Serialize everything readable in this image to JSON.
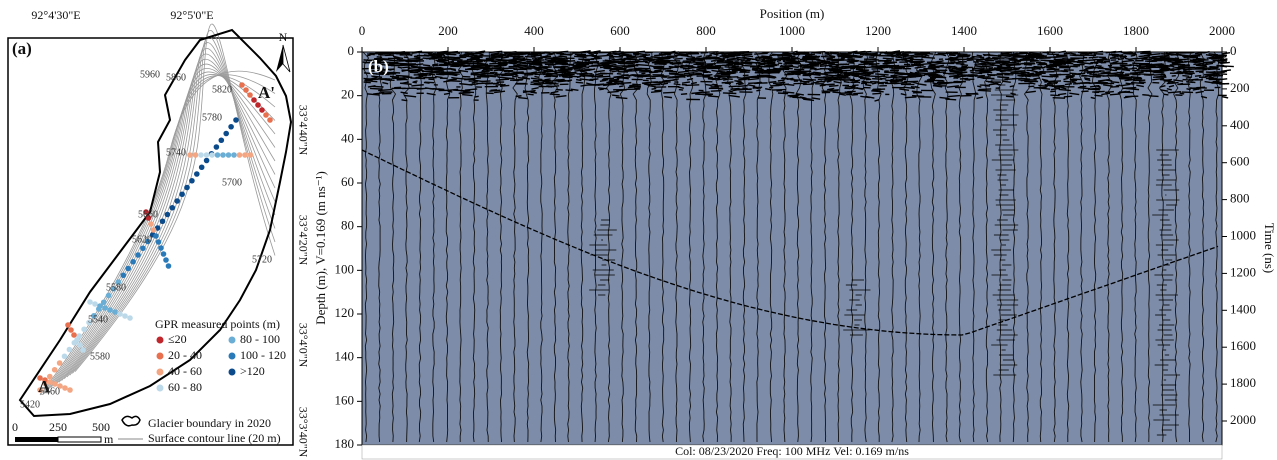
{
  "panel_a": {
    "label": "(a)",
    "lon_labels": [
      "92°4'30\"E",
      "92°5'0\"E"
    ],
    "lat_labels": [
      "33°4'40\"N",
      "33°4'20\"N",
      "33°4'0\"N",
      "33°3'40\"N"
    ],
    "north": "N",
    "point_labels": [
      "A",
      "A'"
    ],
    "contour_labels": [
      "5960",
      "5860",
      "5820",
      "5780",
      "5740",
      "5700",
      "5660",
      "5620",
      "5720",
      "5580",
      "5540",
      "5580",
      "5460",
      "5420"
    ],
    "legend_title": "GPR measured points (m)",
    "legend_items": [
      "≤20",
      "20 - 40",
      "40 - 60",
      "60 - 80",
      "80 - 100",
      "100 - 120",
      ">120"
    ],
    "scale_labels": [
      0,
      250,
      500
    ],
    "scale_unit": "m",
    "boundary_label": "Glacier boundary in 2020",
    "contour_label": "Surface contour line (20 m)"
  },
  "panel_b": {
    "label": "(b)",
    "x_label": "Position (m)",
    "xticks": [
      0,
      200,
      400,
      600,
      800,
      1000,
      1200,
      1400,
      1600,
      1800,
      2000
    ],
    "y_label": "Depth (m), V=0.169 (m ns⁻¹)",
    "yticks": [
      0,
      20,
      40,
      60,
      80,
      100,
      120,
      140,
      160,
      180
    ],
    "y2_label": "Time (ns)",
    "y2ticks": [
      0,
      200,
      400,
      600,
      800,
      1000,
      1200,
      1400,
      1600,
      1800,
      2000
    ],
    "footer": "Col: 08/23/2020 Freq: 100 MHz Vel: 0.169 m/ns"
  }
}
